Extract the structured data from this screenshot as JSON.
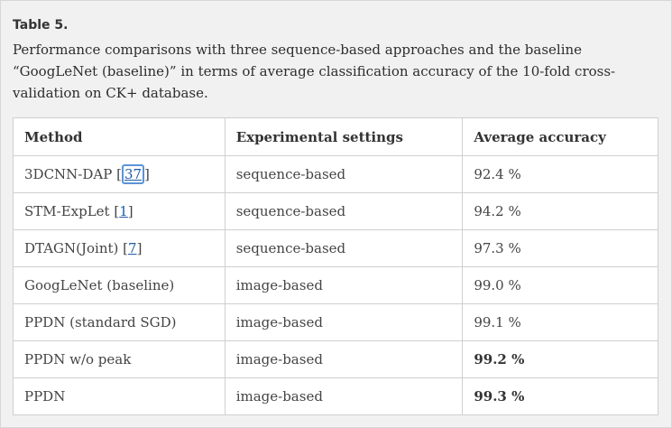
{
  "caption": {
    "title": "Table 5.",
    "text": "Performance comparisons with three sequence-based approaches and the baseline “GoogLeNet (baseline)” in terms of average classification accuracy of the 10-fold cross-validation on CK+ database."
  },
  "table": {
    "headers": [
      "Method",
      "Experimental settings",
      "Average accuracy"
    ],
    "rows": [
      {
        "method": "3DCNN-DAP ",
        "ref": "37",
        "setting": "sequence-based",
        "accuracy": "92.4 %",
        "bold": false
      },
      {
        "method": "STM-ExpLet ",
        "ref": "1",
        "setting": "sequence-based",
        "accuracy": "94.2 %",
        "bold": false
      },
      {
        "method": "DTAGN(Joint) ",
        "ref": "7",
        "setting": "sequence-based",
        "accuracy": "97.3 %",
        "bold": false
      },
      {
        "method": "GoogLeNet (baseline)",
        "ref": null,
        "setting": "image-based",
        "accuracy": "99.0 %",
        "bold": false
      },
      {
        "method": "PPDN (standard SGD)",
        "ref": null,
        "setting": "image-based",
        "accuracy": "99.1 %",
        "bold": false
      },
      {
        "method": "PPDN w/o peak",
        "ref": null,
        "setting": "image-based",
        "accuracy": "99.2 %",
        "bold": true
      },
      {
        "method": "PPDN",
        "ref": null,
        "setting": "image-based",
        "accuracy": "99.3 %",
        "bold": true
      }
    ]
  },
  "colors": {
    "panel_bg": "#f1f1f1",
    "link": "#1f5ba8",
    "focus_ring": "#5b95d8"
  }
}
